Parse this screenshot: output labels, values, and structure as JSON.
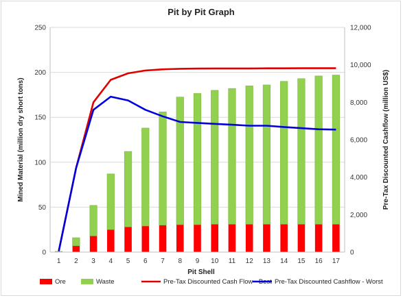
{
  "chart_data": {
    "type": "bar",
    "title": "Pit by Pit Graph",
    "xlabel": "Pit Shell",
    "ylabel": "Mined Material (million dry short tons)",
    "y2label": "Pre-Tax Discounted Cashflow (million US$)",
    "categories": [
      "1",
      "2",
      "3",
      "4",
      "5",
      "6",
      "7",
      "8",
      "9",
      "10",
      "11",
      "12",
      "13",
      "14",
      "15",
      "16",
      "17"
    ],
    "ylim": [
      0,
      250
    ],
    "yticks": [
      "0",
      "50",
      "100",
      "150",
      "200",
      "250"
    ],
    "y2lim": [
      0,
      12000
    ],
    "y2ticks": [
      "0",
      "2,000",
      "4,000",
      "6,000",
      "8,000",
      "10,000",
      "12,000"
    ],
    "stacked": true,
    "grid": "horizontal",
    "legend_position": "bottom",
    "series": [
      {
        "name": "Ore",
        "kind": "bar",
        "axis": "left",
        "color": "#ff0000",
        "values": [
          0.3,
          7,
          18,
          25,
          28,
          29,
          30,
          30.5,
          30.5,
          31,
          31,
          31,
          31,
          31,
          31,
          31,
          31
        ]
      },
      {
        "name": "Waste",
        "kind": "bar",
        "axis": "left",
        "color": "#92d050",
        "values": [
          0.5,
          9,
          34,
          62,
          84,
          109,
          126,
          142,
          146,
          149,
          151,
          154,
          155,
          159,
          162,
          165,
          166
        ]
      },
      {
        "name": "Pre-Tax Discounted Cash Flow - Best",
        "kind": "line",
        "axis": "right",
        "color": "#e00000",
        "values": [
          50,
          4500,
          8000,
          9200,
          9550,
          9700,
          9760,
          9790,
          9800,
          9810,
          9810,
          9810,
          9815,
          9815,
          9820,
          9820,
          9820
        ]
      },
      {
        "name": "Pre-Tax Discounted Cashflow - Worst",
        "kind": "line",
        "axis": "right",
        "color": "#0000dd",
        "values": [
          50,
          4500,
          7600,
          8300,
          8100,
          7600,
          7250,
          6950,
          6900,
          6850,
          6800,
          6750,
          6750,
          6680,
          6620,
          6560,
          6540
        ]
      }
    ]
  }
}
